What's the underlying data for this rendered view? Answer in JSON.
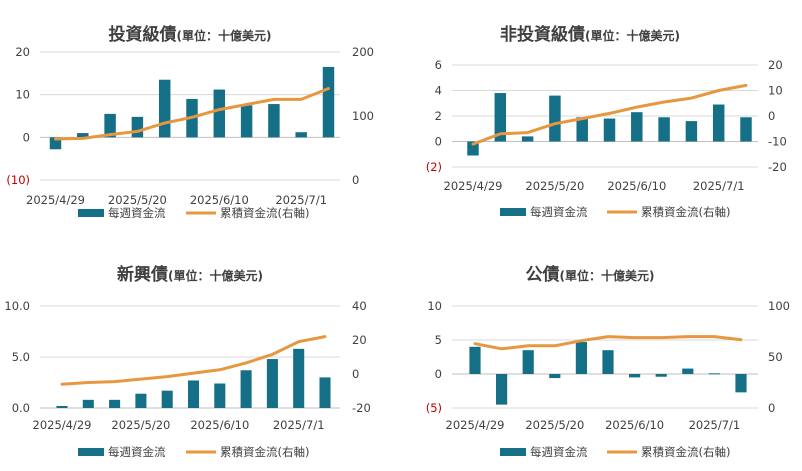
{
  "colors": {
    "bar": "#156f86",
    "line": "#e6973f",
    "grid": "#d9d9d9",
    "negative": "#c00000"
  },
  "chart_data": [
    {
      "type": "bar",
      "title": "投資級債",
      "subtitle": "(單位：十億美元)",
      "x_labels": [
        "2025/4/29",
        "2025/5/20",
        "2025/6/10",
        "2025/7/1"
      ],
      "left_ticks": [
        "20",
        "10",
        "0",
        "(10)"
      ],
      "right_ticks": [
        "200",
        "100",
        "0"
      ],
      "ylim_left": [
        -10,
        20
      ],
      "ylim_right": [
        0,
        200
      ],
      "grid": true,
      "series": [
        {
          "name": "每週資金流",
          "type": "bar",
          "axis": "left",
          "values": [
            -2.8,
            1.0,
            5.5,
            4.8,
            13.5,
            9.0,
            11.2,
            7.5,
            7.8,
            1.2,
            16.5
          ]
        },
        {
          "name": "累積資金流(右軸)",
          "type": "line",
          "axis": "right",
          "values": [
            64,
            65,
            71,
            76,
            89,
            98,
            110,
            118,
            126,
            126,
            143
          ]
        }
      ]
    },
    {
      "type": "bar",
      "title": "非投資級債",
      "subtitle": "(單位：十億美元)",
      "x_labels": [
        "2025/4/29",
        "2025/5/20",
        "2025/6/10",
        "2025/7/1"
      ],
      "left_ticks": [
        "6",
        "4",
        "2",
        "0",
        "(2)"
      ],
      "right_ticks": [
        "20",
        "10",
        "0",
        "-10",
        "-20"
      ],
      "ylim_left": [
        -2,
        6
      ],
      "ylim_right": [
        -20,
        20
      ],
      "grid": true,
      "series": [
        {
          "name": "每週資金流",
          "type": "bar",
          "axis": "left",
          "values": [
            -1.1,
            3.8,
            0.4,
            3.6,
            1.9,
            1.8,
            2.3,
            1.9,
            1.6,
            2.9,
            1.9
          ]
        },
        {
          "name": "累積資金流(右軸)",
          "type": "line",
          "axis": "right",
          "values": [
            -11,
            -7,
            -6.5,
            -3,
            -1,
            1,
            3.5,
            5.5,
            7,
            10,
            12
          ]
        }
      ]
    },
    {
      "type": "bar",
      "title": "新興債",
      "subtitle": "(單位：十億美元)",
      "x_labels": [
        "2025/4/29",
        "2025/5/20",
        "2025/6/10",
        "2025/7/1"
      ],
      "left_ticks": [
        "10.0",
        "5.0",
        "0.0"
      ],
      "right_ticks": [
        "40",
        "20",
        "0",
        "-20"
      ],
      "ylim_left": [
        0,
        10
      ],
      "ylim_right": [
        -20,
        40
      ],
      "grid": true,
      "series": [
        {
          "name": "每週資金流",
          "type": "bar",
          "axis": "left",
          "values": [
            0.2,
            0.8,
            0.8,
            1.4,
            1.7,
            2.7,
            2.4,
            3.7,
            4.8,
            5.8,
            3.0
          ]
        },
        {
          "name": "累積資金流(右軸)",
          "type": "line",
          "axis": "right",
          "values": [
            -6,
            -5,
            -4.5,
            -3,
            -1.5,
            0.5,
            2.5,
            6.5,
            11.5,
            19,
            22
          ]
        }
      ]
    },
    {
      "type": "bar",
      "title": "公債",
      "subtitle": "(單位：十億美元)",
      "x_labels": [
        "2025/4/29",
        "2025/5/20",
        "2025/6/10",
        "2025/7/1"
      ],
      "left_ticks": [
        "10",
        "5",
        "0",
        "(5)"
      ],
      "right_ticks": [
        "100",
        "50",
        "0"
      ],
      "ylim_left": [
        -5,
        10
      ],
      "ylim_right": [
        0,
        100
      ],
      "grid": true,
      "series": [
        {
          "name": "每週資金流",
          "type": "bar",
          "axis": "left",
          "values": [
            4.0,
            -4.5,
            3.5,
            -0.6,
            4.7,
            3.5,
            -0.5,
            -0.4,
            0.8,
            0.1,
            -2.7
          ]
        },
        {
          "name": "累積資金流(右軸)",
          "type": "line",
          "axis": "right",
          "values": [
            63,
            58,
            61,
            61,
            66,
            70,
            69,
            69,
            70,
            70,
            67
          ]
        }
      ]
    }
  ]
}
